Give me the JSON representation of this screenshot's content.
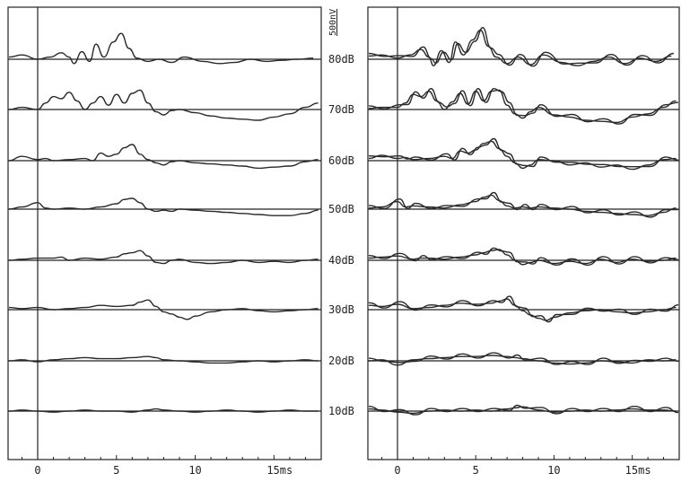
{
  "chart_data": {
    "type": "line",
    "x_unit": "ms",
    "xlim": [
      -2,
      18
    ],
    "x_ticks": [
      0,
      5,
      10,
      15
    ],
    "x_tick_labels": [
      "0",
      "5",
      "10",
      "15ms"
    ],
    "scale_bar_label": "500nV",
    "levels": [
      "80dB",
      "70dB",
      "60dB",
      "50dB",
      "40dB",
      "30dB",
      "20dB",
      "10dB"
    ],
    "panels": [
      {
        "traces_per_level": 1,
        "waveforms": [
          {
            "level": "80dB",
            "x": [
              -2,
              -1,
              0,
              0.8,
              1.5,
              2,
              2.3,
              2.8,
              3.3,
              3.7,
              4.2,
              4.8,
              5.3,
              5.8,
              6.3,
              7,
              7.7,
              8.5,
              9.3,
              10.5,
              11.5,
              12.5,
              13.5,
              14.5,
              15.5,
              16.5,
              17.5
            ],
            "y": [
              0.1,
              0.2,
              0,
              0.1,
              0.3,
              0.1,
              -0.2,
              0.35,
              -0.1,
              0.7,
              0.1,
              0.8,
              1.2,
              0.5,
              0.05,
              -0.1,
              0,
              -0.15,
              0.1,
              -0.1,
              -0.2,
              -0.15,
              0,
              -0.1,
              -0.05,
              0,
              0.05
            ]
          },
          {
            "level": "70dB",
            "x": [
              -2,
              -1,
              0,
              0.5,
              1,
              1.5,
              2,
              2.5,
              3,
              3.5,
              4,
              4.5,
              5,
              5.5,
              6,
              6.5,
              7,
              7.5,
              8,
              8.5,
              9,
              10,
              11,
              12,
              13,
              14,
              15,
              16,
              17,
              17.8
            ],
            "y": [
              0,
              0.1,
              0,
              0.3,
              0.6,
              0.5,
              0.8,
              0.4,
              0,
              0.3,
              0.6,
              0.2,
              0.7,
              0.3,
              0.75,
              0.9,
              0.3,
              -0.1,
              -0.25,
              -0.05,
              0,
              -0.15,
              -0.3,
              -0.4,
              -0.45,
              -0.5,
              -0.35,
              -0.2,
              0.1,
              0.3
            ]
          },
          {
            "level": "60dB",
            "x": [
              -2,
              -1,
              0,
              0.5,
              1,
              2,
              3,
              3.5,
              4,
              4.5,
              5,
              5.5,
              6,
              6.5,
              7,
              7.5,
              8,
              8.5,
              9,
              10,
              11,
              12,
              13,
              14,
              15,
              16,
              17,
              17.8
            ],
            "y": [
              0,
              0.2,
              0.05,
              0.1,
              0,
              0.05,
              0.1,
              0,
              0.35,
              0.2,
              0.3,
              0.6,
              0.75,
              0.3,
              0.05,
              -0.1,
              -0.2,
              -0.05,
              0,
              -0.1,
              -0.15,
              -0.2,
              -0.25,
              -0.35,
              -0.3,
              -0.25,
              -0.05,
              0.05
            ]
          },
          {
            "level": "50dB",
            "x": [
              -2,
              -1,
              0,
              0.5,
              1,
              2,
              3,
              4,
              5,
              5.5,
              6,
              6.5,
              7,
              7.5,
              8,
              8.5,
              9,
              10,
              11,
              12,
              13,
              14,
              15,
              16,
              17,
              17.8
            ],
            "y": [
              0,
              0.1,
              0.3,
              0.05,
              0,
              0.05,
              0,
              0.1,
              0.25,
              0.45,
              0.5,
              0.3,
              0,
              -0.1,
              -0.05,
              -0.1,
              0,
              -0.05,
              -0.1,
              -0.15,
              -0.2,
              -0.25,
              -0.3,
              -0.3,
              -0.2,
              -0.05
            ]
          },
          {
            "level": "40dB",
            "x": [
              -2,
              -1,
              0,
              1,
              1.5,
              2,
              3,
              4,
              5,
              5.5,
              6,
              6.5,
              7,
              7.5,
              8,
              8.5,
              9,
              10,
              11,
              12,
              13,
              14,
              15,
              16,
              17,
              17.8
            ],
            "y": [
              0,
              0.05,
              0.1,
              0.1,
              0.15,
              0,
              0.1,
              0.05,
              0.15,
              0.3,
              0.35,
              0.45,
              0.2,
              -0.1,
              -0.15,
              0,
              0.05,
              -0.1,
              -0.15,
              -0.1,
              0,
              -0.1,
              -0.05,
              -0.1,
              0,
              0.05
            ]
          },
          {
            "level": "30dB",
            "x": [
              -2,
              -1,
              0,
              1,
              2,
              3,
              4,
              5,
              6,
              6.5,
              7,
              7.5,
              8,
              8.5,
              9,
              9.5,
              10,
              11,
              12,
              13,
              14,
              15,
              16,
              17,
              17.8
            ],
            "y": [
              0.1,
              0.05,
              0.1,
              0,
              0.05,
              0.1,
              0.2,
              0.15,
              0.2,
              0.35,
              0.45,
              0.15,
              -0.1,
              -0.2,
              -0.35,
              -0.45,
              -0.3,
              -0.1,
              0,
              0.05,
              -0.05,
              -0.1,
              -0.05,
              0,
              0.05
            ]
          },
          {
            "level": "20dB",
            "x": [
              -2,
              -1,
              0,
              1,
              2,
              3,
              4,
              5,
              6,
              7,
              7.5,
              8,
              9,
              10,
              11,
              12,
              13,
              14,
              15,
              16,
              17,
              17.8
            ],
            "y": [
              0,
              0.05,
              -0.05,
              0.05,
              0.1,
              0.15,
              0.1,
              0.1,
              0.15,
              0.2,
              0.15,
              0.05,
              0,
              -0.05,
              -0.1,
              -0.1,
              -0.05,
              0,
              -0.05,
              0,
              0.05,
              0
            ]
          },
          {
            "level": "10dB",
            "x": [
              -2,
              -1,
              0,
              1,
              2,
              3,
              4,
              5,
              6,
              7,
              7.5,
              8,
              9,
              10,
              11,
              12,
              13,
              14,
              15,
              16,
              17,
              17.8
            ],
            "y": [
              0,
              0.05,
              0,
              -0.05,
              0,
              0.05,
              0,
              0,
              -0.05,
              0.05,
              0.1,
              0.05,
              0,
              -0.05,
              0,
              0.05,
              0,
              -0.05,
              0,
              0.05,
              0,
              0
            ]
          }
        ]
      },
      {
        "traces_per_level": 2,
        "waveforms": [
          {
            "level": "80dB",
            "x": [
              -2,
              -1,
              0,
              0.8,
              1.5,
              2,
              2.3,
              2.8,
              3.3,
              3.7,
              4.2,
              4.8,
              5.3,
              5.8,
              6.3,
              7,
              7.7,
              8.5,
              9.3,
              10.5,
              11.5,
              12.5,
              13.5,
              14.5,
              15.5,
              16.5,
              17.5
            ],
            "y": [
              0.15,
              0.2,
              0.05,
              0.2,
              0.45,
              0.1,
              -0.3,
              0.4,
              -0.15,
              0.8,
              0.2,
              0.9,
              1.35,
              0.6,
              0.1,
              -0.2,
              0.1,
              -0.25,
              0.2,
              -0.15,
              -0.3,
              -0.1,
              0.1,
              -0.2,
              0.05,
              -0.1,
              0.15
            ]
          },
          {
            "level": "70dB",
            "x": [
              -2,
              -1,
              0,
              0.5,
              1,
              1.5,
              2,
              2.5,
              3,
              3.5,
              4,
              4.5,
              5,
              5.5,
              6,
              6.5,
              7,
              7.5,
              8,
              8.5,
              9,
              10,
              11,
              12,
              13,
              14,
              15,
              16,
              17,
              17.8
            ],
            "y": [
              0.05,
              0.1,
              0.1,
              0.3,
              0.7,
              0.6,
              0.85,
              0.4,
              0,
              0.35,
              0.75,
              0.25,
              0.85,
              0.4,
              0.85,
              0.9,
              0.2,
              -0.2,
              -0.4,
              -0.1,
              0.1,
              -0.25,
              -0.35,
              -0.5,
              -0.55,
              -0.6,
              -0.35,
              -0.2,
              0.1,
              0.4
            ]
          },
          {
            "level": "60dB",
            "x": [
              -2,
              -1,
              0,
              0.5,
              1,
              2,
              3,
              3.5,
              4,
              4.5,
              5,
              5.5,
              6,
              6.5,
              7,
              7.5,
              8,
              8.5,
              9,
              10,
              11,
              12,
              13,
              14,
              15,
              16,
              17,
              17.8
            ],
            "y": [
              0.1,
              0.25,
              0.1,
              0.15,
              0.05,
              0.1,
              0.2,
              0.1,
              0.45,
              0.35,
              0.5,
              0.8,
              0.9,
              0.55,
              0.2,
              -0.1,
              -0.35,
              -0.2,
              0.05,
              0,
              -0.2,
              -0.1,
              -0.3,
              -0.2,
              -0.4,
              -0.2,
              0.05,
              0.1
            ]
          },
          {
            "level": "50dB",
            "x": [
              -2,
              -1,
              0,
              0.5,
              1,
              2,
              3,
              4,
              5,
              5.5,
              6,
              6.5,
              7,
              7.5,
              8,
              8.5,
              9,
              10,
              11,
              12,
              13,
              14,
              15,
              16,
              17,
              17.8
            ],
            "y": [
              0.05,
              0.1,
              0.35,
              0.1,
              0.15,
              0.1,
              0.05,
              0.2,
              0.35,
              0.55,
              0.65,
              0.4,
              0.15,
              0.05,
              0.1,
              0.05,
              0.1,
              0.05,
              0,
              -0.1,
              -0.15,
              -0.2,
              -0.25,
              -0.3,
              -0.15,
              0.05
            ]
          },
          {
            "level": "40dB",
            "x": [
              -2,
              -1,
              0,
              1,
              1.5,
              2,
              3,
              4,
              5,
              5.5,
              6,
              6.5,
              7,
              7.5,
              8,
              8.5,
              9,
              10,
              11,
              12,
              13,
              14,
              15,
              16,
              17,
              17.8
            ],
            "y": [
              0.1,
              0.15,
              0.2,
              0.05,
              0.1,
              0.1,
              0.05,
              0.15,
              0.25,
              0.35,
              0.45,
              0.5,
              0.25,
              0,
              -0.2,
              -0.1,
              0,
              -0.15,
              -0.05,
              -0.15,
              0.05,
              -0.1,
              0.05,
              -0.05,
              0,
              0.1
            ]
          },
          {
            "level": "30dB",
            "x": [
              -2,
              -1,
              0,
              1,
              2,
              3,
              4,
              5,
              6,
              6.5,
              7,
              7.5,
              8,
              8.5,
              9,
              9.5,
              10,
              11,
              12,
              13,
              14,
              15,
              16,
              17,
              17.8
            ],
            "y": [
              0.2,
              0.15,
              0.25,
              0.05,
              0.1,
              0.2,
              0.3,
              0.25,
              0.3,
              0.4,
              0.5,
              0.2,
              -0.05,
              -0.25,
              -0.4,
              -0.5,
              -0.35,
              -0.15,
              -0.05,
              0,
              -0.1,
              -0.15,
              -0.1,
              0,
              0.1
            ]
          },
          {
            "level": "20dB",
            "x": [
              -2,
              -1,
              0,
              1,
              2,
              3,
              4,
              5,
              6,
              7,
              7.5,
              8,
              9,
              10,
              11,
              12,
              13,
              14,
              15,
              16,
              17,
              17.8
            ],
            "y": [
              0,
              0.05,
              -0.2,
              0.05,
              0.1,
              0.15,
              0.2,
              0.2,
              0.25,
              0.2,
              0.15,
              0.1,
              0,
              -0.1,
              -0.15,
              -0.1,
              0,
              -0.05,
              -0.1,
              0.05,
              0,
              0.05
            ]
          },
          {
            "level": "10dB",
            "x": [
              -2,
              -1,
              0,
              1,
              2,
              3,
              4,
              5,
              6,
              7,
              7.5,
              8,
              9,
              10,
              11,
              12,
              13,
              14,
              15,
              16,
              17,
              17.8
            ],
            "y": [
              0.1,
              0.05,
              -0.05,
              -0.1,
              0,
              0.05,
              0,
              0.05,
              0,
              0.1,
              0.15,
              0.2,
              0.05,
              -0.05,
              0,
              0.05,
              0,
              0.05,
              0.1,
              0.05,
              0.05,
              0
            ]
          }
        ]
      }
    ]
  }
}
